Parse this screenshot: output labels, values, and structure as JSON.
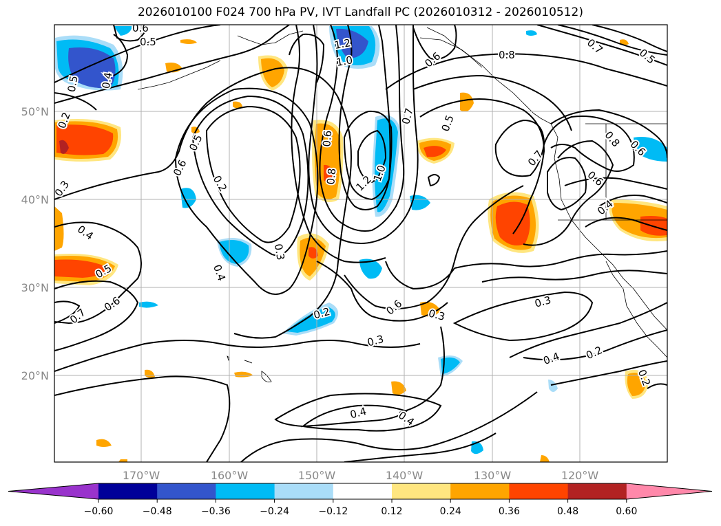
{
  "title": "2026010100 F024 700 hPa PV, IVT Landfall PC (2026010312 - 2026010512)",
  "map": {
    "lat_ticks": [
      "50°N",
      "40°N",
      "30°N",
      "20°N"
    ],
    "lon_ticks": [
      "170°W",
      "160°W",
      "150°W",
      "140°W",
      "130°W",
      "120°W"
    ],
    "contour_labels": [
      "0.6",
      "0.5",
      "0.4",
      "0.5",
      "0.2",
      "0.5",
      "0.6",
      "0.2",
      "0.3",
      "0.4",
      "0.3",
      "0.4",
      "0.5",
      "0.7",
      "0.6",
      "0.8",
      "0.6",
      "1.2",
      "1.0",
      "1.2",
      "1.0",
      "0.7",
      "0.6",
      "0.5",
      "0.8",
      "0.7",
      "0.5",
      "0.7",
      "0.8",
      "0.6",
      "0.6",
      "0.4",
      "0.2",
      "0.3",
      "0.6",
      "0.3",
      "0.3",
      "0.4",
      "0.2",
      "0.4",
      "0.4",
      "0.2"
    ]
  },
  "colorbar": {
    "colors": [
      "#9933cc",
      "#000099",
      "#3355cc",
      "#00bbf5",
      "#aaddf8",
      "#ffffff",
      "#ffe680",
      "#ffa500",
      "#ff4400",
      "#b22222",
      "#ff88aa"
    ],
    "labels": [
      "−0.60",
      "−0.48",
      "−0.36",
      "−0.24",
      "−0.12",
      "0.12",
      "0.24",
      "0.36",
      "0.48",
      "0.60"
    ]
  }
}
